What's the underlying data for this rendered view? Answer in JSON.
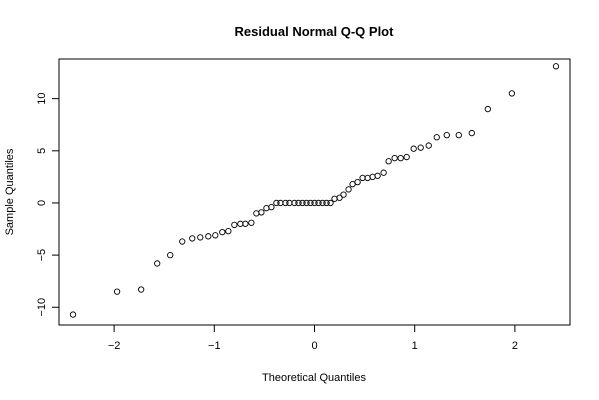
{
  "chart_data": {
    "type": "scatter",
    "title": "Residual Normal Q-Q Plot",
    "xlabel": "Theoretical Quantiles",
    "ylabel": "Sample Quantiles",
    "xlim": [
      -2.55,
      2.55
    ],
    "ylim": [
      -11.7,
      13.8
    ],
    "xticks": [
      -2,
      -1,
      0,
      1,
      2
    ],
    "yticks": [
      -10,
      -5,
      0,
      5,
      10
    ],
    "grid": false,
    "series": [
      {
        "x": [
          -2.41,
          -1.97,
          -1.73,
          -1.57,
          -1.44,
          -1.32,
          -1.22,
          -1.14,
          -1.06,
          -0.99,
          -0.92,
          -0.86,
          -0.8,
          -0.74,
          -0.69,
          -0.63,
          -0.58,
          -0.53,
          -0.48,
          -0.43,
          -0.38,
          -0.34,
          -0.29,
          -0.25,
          -0.2,
          -0.16,
          -0.12,
          -0.08,
          -0.04,
          0.0,
          0.04,
          0.08,
          0.12,
          0.16,
          0.2,
          0.25,
          0.29,
          0.34,
          0.38,
          0.43,
          0.48,
          0.53,
          0.58,
          0.63,
          0.69,
          0.74,
          0.8,
          0.86,
          0.92,
          0.99,
          1.06,
          1.14,
          1.22,
          1.32,
          1.44,
          1.57,
          1.73,
          1.97,
          2.41
        ],
        "y": [
          -10.7,
          -8.5,
          -8.3,
          -5.8,
          -5.0,
          -3.7,
          -3.4,
          -3.3,
          -3.2,
          -3.1,
          -2.8,
          -2.7,
          -2.1,
          -2.0,
          -2.0,
          -1.9,
          -1.0,
          -0.9,
          -0.5,
          -0.4,
          0.0,
          0.0,
          0.0,
          0.0,
          0.0,
          0.0,
          0.0,
          0.0,
          0.0,
          0.0,
          0.0,
          0.0,
          0.0,
          0.0,
          0.4,
          0.5,
          0.8,
          1.3,
          1.8,
          2.0,
          2.4,
          2.4,
          2.5,
          2.6,
          2.9,
          4.0,
          4.3,
          4.3,
          4.4,
          5.2,
          5.3,
          5.5,
          6.3,
          6.5,
          6.5,
          6.7,
          9.0,
          10.5,
          13.1
        ]
      }
    ]
  }
}
